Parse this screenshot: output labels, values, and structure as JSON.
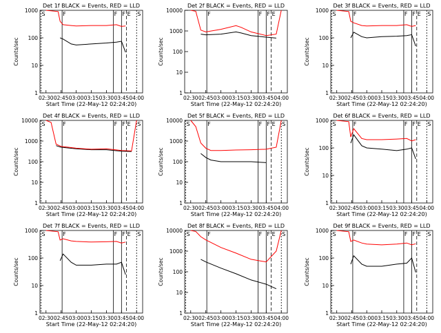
{
  "figure": {
    "xlabel": "Start Time (22-May-12 02:24:20)",
    "ylabel": "Counts/sec",
    "x_tick_labels": [
      "02:30",
      "02:45",
      "03:00",
      "03:15",
      "03:30",
      "03:45",
      "04:00"
    ],
    "y_tick_labels": [
      "1",
      "10",
      "100",
      "1000"
    ],
    "colors": {
      "events": "#000000",
      "lld": "#ff0000"
    }
  },
  "chart_data": [
    {
      "type": "line",
      "title": "Det 1f BLACK = Events, RED = LLD",
      "xlim": [
        "02:24",
        "04:06"
      ],
      "ylim": [
        1,
        1000
      ],
      "y_scale": "log",
      "markers": [
        {
          "label": "S",
          "time": "02:25"
        },
        {
          "label": "F",
          "time": "02:46"
        },
        {
          "label": "F",
          "time": "03:37"
        },
        {
          "label": "F",
          "time": "03:45"
        },
        {
          "label": "E",
          "time": "03:50"
        },
        {
          "label": "S",
          "time": "04:00"
        }
      ],
      "x": [
        "02:30",
        "02:42",
        "02:44",
        "02:47",
        "02:55",
        "03:00",
        "03:15",
        "03:30",
        "03:40",
        "03:45",
        "03:49"
      ],
      "series": [
        {
          "values": [
            null,
            null,
            100,
            90,
            60,
            55,
            60,
            65,
            70,
            75,
            30
          ]
        },
        {
          "values": [
            1000,
            900,
            400,
            300,
            280,
            270,
            280,
            280,
            300,
            260,
            270
          ]
        }
      ]
    },
    {
      "type": "line",
      "title": "Det 2f BLACK = Events, RED = LLD",
      "xlim": [
        "02:24",
        "04:06"
      ],
      "ylim": [
        1,
        10000
      ],
      "y_scale": "log",
      "markers": [
        {
          "label": "F",
          "time": "02:46"
        },
        {
          "label": "F",
          "time": "03:37"
        },
        {
          "label": "F",
          "time": "03:45"
        },
        {
          "label": "E",
          "time": "03:50"
        }
      ],
      "x": [
        "02:30",
        "02:35",
        "02:40",
        "02:45",
        "03:00",
        "03:15",
        "03:20",
        "03:30",
        "03:45",
        "03:55",
        "04:00"
      ],
      "series": [
        {
          "values": [
            null,
            null,
            700,
            650,
            700,
            900,
            800,
            600,
            500,
            450,
            null
          ]
        },
        {
          "values": [
            10000,
            9000,
            1100,
            900,
            1200,
            1800,
            1500,
            900,
            600,
            700,
            10000
          ]
        }
      ]
    },
    {
      "type": "line",
      "title": "Det 3f BLACK = Events, RED = LLD",
      "xlim": [
        "02:24",
        "04:06"
      ],
      "ylim": [
        1,
        1000
      ],
      "y_scale": "log",
      "markers": [
        {
          "label": "S",
          "time": "02:25"
        },
        {
          "label": "F",
          "time": "02:46"
        },
        {
          "label": "F",
          "time": "03:37"
        },
        {
          "label": "F",
          "time": "03:45"
        },
        {
          "label": "E",
          "time": "03:50"
        },
        {
          "label": "S",
          "time": "04:00"
        }
      ],
      "x": [
        "02:30",
        "02:42",
        "02:44",
        "02:47",
        "02:55",
        "03:00",
        "03:15",
        "03:30",
        "03:40",
        "03:45",
        "03:49"
      ],
      "series": [
        {
          "values": [
            null,
            null,
            100,
            160,
            110,
            100,
            110,
            115,
            120,
            130,
            50
          ]
        },
        {
          "values": [
            1000,
            900,
            400,
            350,
            280,
            270,
            280,
            280,
            300,
            260,
            280
          ]
        }
      ]
    },
    {
      "type": "line",
      "title": "Det 4f BLACK = Events, RED = LLD",
      "xlim": [
        "02:24",
        "04:06"
      ],
      "ylim": [
        1,
        10000
      ],
      "y_scale": "log",
      "markers": [
        {
          "label": "S",
          "time": "02:25"
        },
        {
          "label": "F",
          "time": "02:46"
        },
        {
          "label": "F",
          "time": "03:37"
        },
        {
          "label": "F",
          "time": "03:45"
        },
        {
          "label": "E",
          "time": "03:50"
        },
        {
          "label": "S",
          "time": "04:00"
        }
      ],
      "x": [
        "02:30",
        "02:35",
        "02:40",
        "02:45",
        "03:00",
        "03:15",
        "03:30",
        "03:45",
        "03:55",
        "04:00"
      ],
      "series": [
        {
          "values": [
            null,
            null,
            600,
            500,
            420,
            380,
            380,
            320,
            310,
            null
          ]
        },
        {
          "values": [
            10000,
            8000,
            700,
            550,
            450,
            400,
            420,
            350,
            330,
            10000
          ]
        }
      ]
    },
    {
      "type": "line",
      "title": "Det 5f BLACK = Events, RED = LLD",
      "xlim": [
        "02:24",
        "04:06"
      ],
      "ylim": [
        1,
        10000
      ],
      "y_scale": "log",
      "markers": [
        {
          "label": "S",
          "time": "02:25"
        },
        {
          "label": "F",
          "time": "02:46"
        },
        {
          "label": "F",
          "time": "03:37"
        },
        {
          "label": "F",
          "time": "03:45"
        },
        {
          "label": "E",
          "time": "03:50"
        },
        {
          "label": "S",
          "time": "04:00"
        }
      ],
      "x": [
        "02:30",
        "02:35",
        "02:40",
        "02:45",
        "02:50",
        "03:00",
        "03:15",
        "03:30",
        "03:45",
        "03:55",
        "04:00"
      ],
      "series": [
        {
          "values": [
            null,
            null,
            250,
            160,
            120,
            100,
            100,
            100,
            90,
            null,
            null
          ]
        },
        {
          "values": [
            10000,
            5000,
            800,
            450,
            350,
            350,
            370,
            380,
            400,
            500,
            10000
          ]
        }
      ]
    },
    {
      "type": "line",
      "title": "Det 6f BLACK = Events, RED = LLD",
      "xlim": [
        "02:24",
        "04:06"
      ],
      "ylim": [
        1,
        1000
      ],
      "y_scale": "log",
      "markers": [
        {
          "label": "S",
          "time": "02:25"
        },
        {
          "label": "F",
          "time": "02:46"
        },
        {
          "label": "F",
          "time": "03:37"
        },
        {
          "label": "F",
          "time": "03:45"
        },
        {
          "label": "E",
          "time": "03:50"
        },
        {
          "label": "S",
          "time": "04:00"
        }
      ],
      "x": [
        "02:30",
        "02:42",
        "02:44",
        "02:47",
        "02:55",
        "03:00",
        "03:15",
        "03:30",
        "03:40",
        "03:45",
        "03:49"
      ],
      "series": [
        {
          "values": [
            null,
            null,
            150,
            300,
            120,
            100,
            90,
            80,
            90,
            100,
            40
          ]
        },
        {
          "values": [
            1000,
            900,
            250,
            500,
            220,
            200,
            200,
            210,
            220,
            180,
            200
          ]
        }
      ]
    },
    {
      "type": "line",
      "title": "Det 7f BLACK = Events, RED = LLD",
      "xlim": [
        "02:24",
        "04:06"
      ],
      "ylim": [
        1,
        1000
      ],
      "y_scale": "log",
      "markers": [
        {
          "label": "S",
          "time": "02:25"
        },
        {
          "label": "F",
          "time": "02:46"
        },
        {
          "label": "F",
          "time": "03:37"
        },
        {
          "label": "F",
          "time": "03:45"
        },
        {
          "label": "E",
          "time": "03:50"
        },
        {
          "label": "S",
          "time": "04:00"
        }
      ],
      "x": [
        "02:30",
        "02:42",
        "02:44",
        "02:47",
        "02:55",
        "03:00",
        "03:15",
        "03:30",
        "03:40",
        "03:45",
        "03:49"
      ],
      "series": [
        {
          "values": [
            null,
            null,
            80,
            140,
            70,
            55,
            55,
            60,
            60,
            70,
            25
          ]
        },
        {
          "values": [
            1000,
            900,
            450,
            500,
            420,
            400,
            380,
            390,
            400,
            350,
            380
          ]
        }
      ]
    },
    {
      "type": "line",
      "title": "Det 8f BLACK = Events, RED = LLD",
      "xlim": [
        "02:24",
        "04:06"
      ],
      "ylim": [
        1,
        10000
      ],
      "y_scale": "log",
      "markers": [
        {
          "label": "S",
          "time": "02:25"
        },
        {
          "label": "F",
          "time": "02:46"
        },
        {
          "label": "F",
          "time": "03:37"
        },
        {
          "label": "F",
          "time": "03:45"
        },
        {
          "label": "E",
          "time": "03:50"
        },
        {
          "label": "S",
          "time": "04:00"
        }
      ],
      "x": [
        "02:30",
        "02:35",
        "02:40",
        "02:45",
        "03:00",
        "03:15",
        "03:30",
        "03:45",
        "03:55",
        "04:00"
      ],
      "series": [
        {
          "values": [
            null,
            null,
            400,
            300,
            150,
            80,
            40,
            25,
            15,
            null
          ]
        },
        {
          "values": [
            10000,
            9000,
            5000,
            3500,
            1500,
            800,
            400,
            300,
            1000,
            10000
          ]
        }
      ]
    },
    {
      "type": "line",
      "title": "Det 9f BLACK = Events, RED = LLD",
      "xlim": [
        "02:24",
        "04:06"
      ],
      "ylim": [
        1,
        1000
      ],
      "y_scale": "log",
      "markers": [
        {
          "label": "S",
          "time": "02:25"
        },
        {
          "label": "F",
          "time": "02:46"
        },
        {
          "label": "F",
          "time": "03:37"
        },
        {
          "label": "F",
          "time": "03:45"
        },
        {
          "label": "E",
          "time": "03:50"
        },
        {
          "label": "S",
          "time": "04:00"
        }
      ],
      "x": [
        "02:30",
        "02:42",
        "02:44",
        "02:47",
        "02:55",
        "03:00",
        "03:15",
        "03:30",
        "03:40",
        "03:45",
        "03:49"
      ],
      "series": [
        {
          "values": [
            null,
            null,
            60,
            120,
            60,
            50,
            50,
            60,
            65,
            100,
            30
          ]
        },
        {
          "values": [
            1000,
            900,
            400,
            450,
            350,
            320,
            300,
            320,
            350,
            300,
            330
          ]
        }
      ]
    }
  ]
}
